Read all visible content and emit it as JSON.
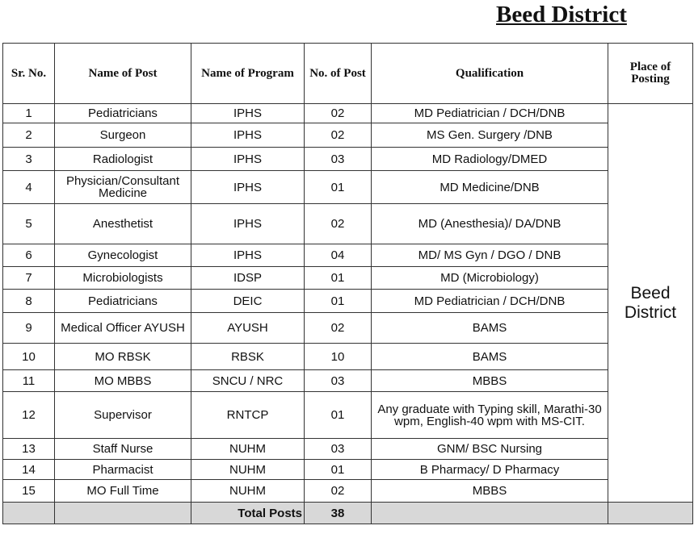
{
  "header": {
    "title": "Beed District"
  },
  "table": {
    "columns": [
      "Sr. No.",
      "Name of Post",
      "Name of Program",
      "No. of Post",
      "Qualification",
      "Place of Posting"
    ],
    "rows": [
      [
        "1",
        "Pediatricians",
        "IPHS",
        "02",
        "MD Pediatrician / DCH/DNB"
      ],
      [
        "2",
        "Surgeon",
        "IPHS",
        "02",
        "MS Gen. Surgery /DNB"
      ],
      [
        "3",
        "Radiologist",
        "IPHS",
        "03",
        "MD Radiology/DMED"
      ],
      [
        "4",
        "Physician/Consultant Medicine",
        "IPHS",
        "01",
        "MD Medicine/DNB"
      ],
      [
        "5",
        "Anesthetist",
        "IPHS",
        "02",
        "MD (Anesthesia)/ DA/DNB"
      ],
      [
        "6",
        "Gynecologist",
        "IPHS",
        "04",
        "MD/ MS Gyn / DGO / DNB"
      ],
      [
        "7",
        "Microbiologists",
        "IDSP",
        "01",
        "MD (Microbiology)"
      ],
      [
        "8",
        "Pediatricians",
        "DEIC",
        "01",
        "MD Pediatrician / DCH/DNB"
      ],
      [
        "9",
        "Medical Officer AYUSH",
        "AYUSH",
        "02",
        "BAMS"
      ],
      [
        "10",
        "MO RBSK",
        "RBSK",
        "10",
        "BAMS"
      ],
      [
        "11",
        "MO MBBS",
        "SNCU / NRC",
        "03",
        "MBBS"
      ],
      [
        "12",
        "Supervisor",
        "RNTCP",
        "01",
        "Any graduate with Typing skill, Marathi-30 wpm, English-40 wpm with MS-CIT."
      ],
      [
        "13",
        "Staff Nurse",
        "NUHM",
        "03",
        "GNM/ BSC Nursing"
      ],
      [
        "14",
        "Pharmacist",
        "NUHM",
        "01",
        "B Pharmacy/ D Pharmacy"
      ],
      [
        "15",
        "MO Full Time",
        "NUHM",
        "02",
        "MBBS"
      ]
    ],
    "place_of_posting": "Beed District",
    "total_label": "Total Posts",
    "total": "38"
  }
}
